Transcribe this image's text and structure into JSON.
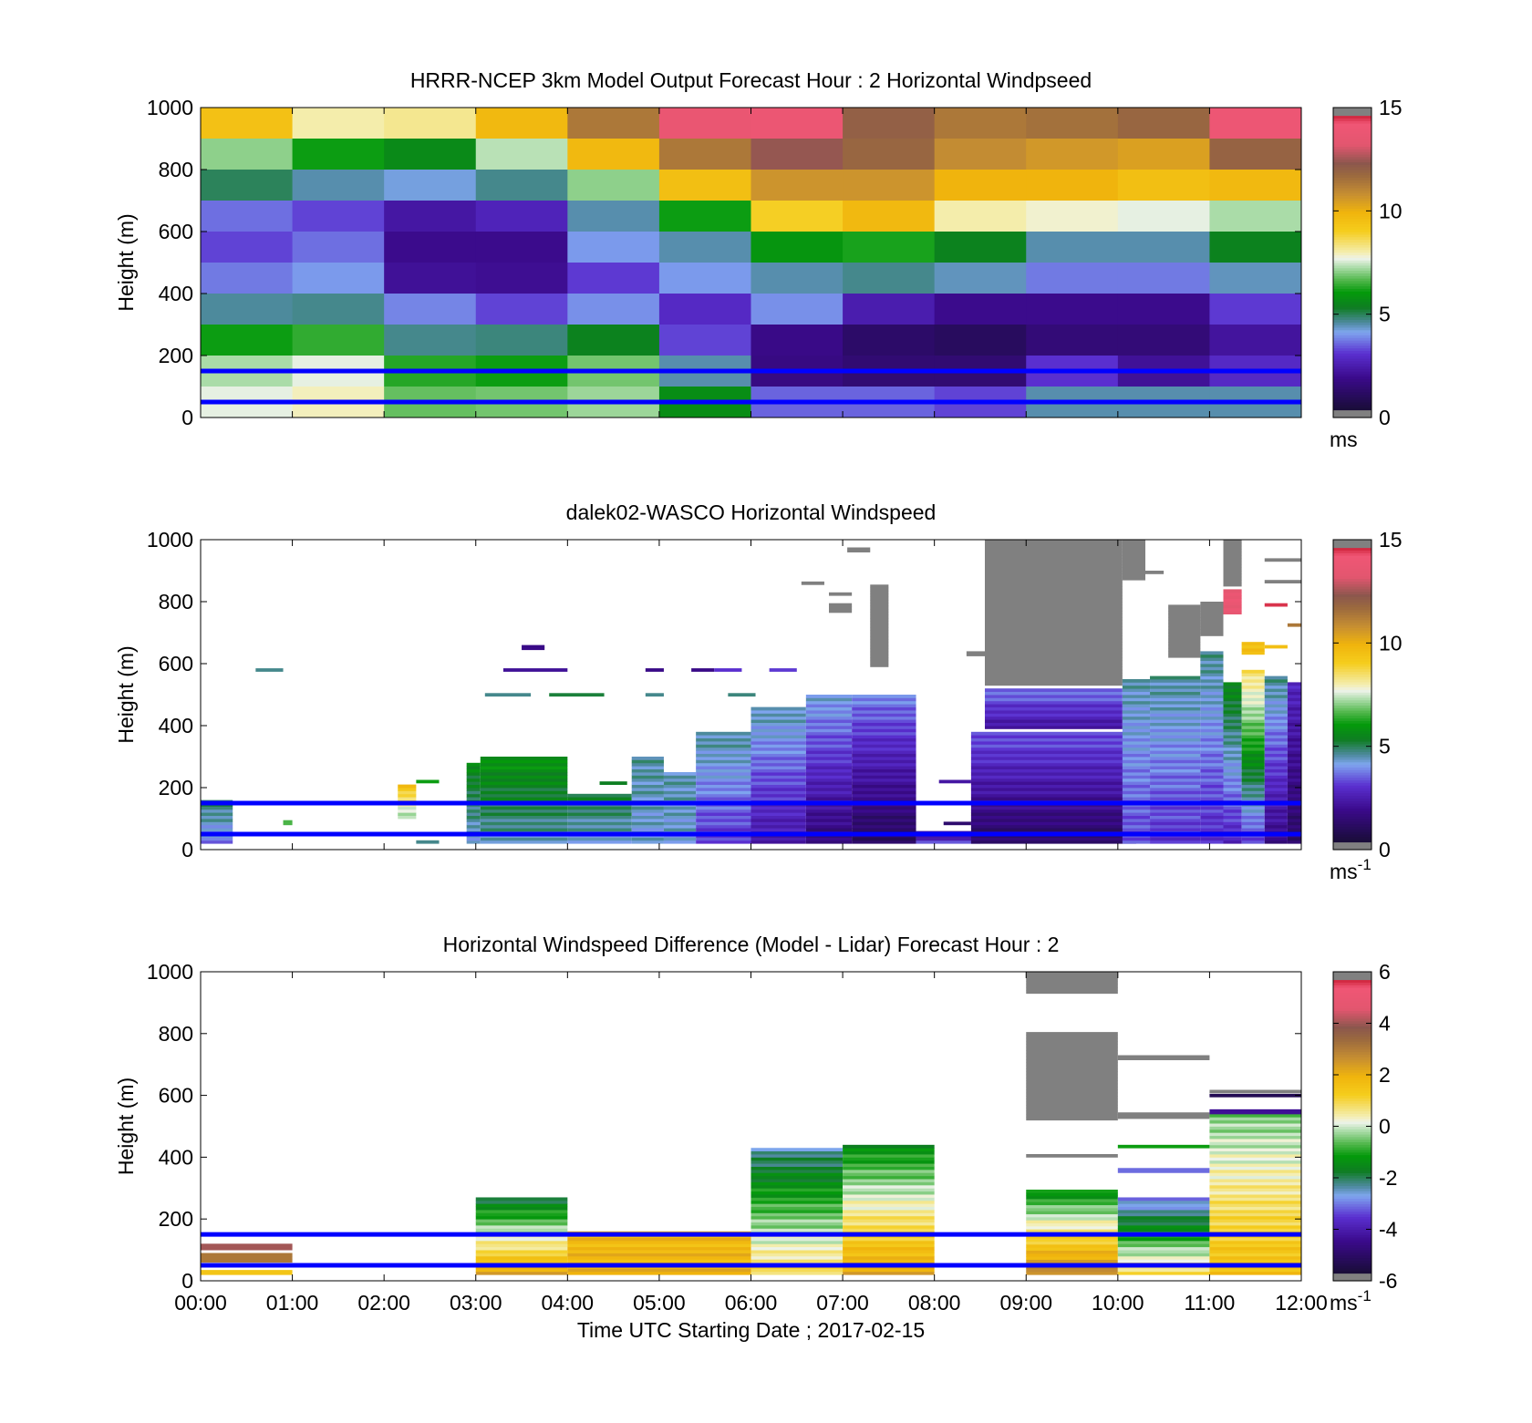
{
  "colors": {
    "overlay_line": "#0000ff",
    "missing": "#808080"
  },
  "colorscale_speed": [
    [
      0.0,
      "#808080"
    ],
    [
      0.02,
      "#1a0d3a"
    ],
    [
      0.12,
      "#3a0a8a"
    ],
    [
      0.2,
      "#5a2fd0"
    ],
    [
      0.27,
      "#7fa6ef"
    ],
    [
      0.3,
      "#4f8aa0"
    ],
    [
      0.35,
      "#0e7d22"
    ],
    [
      0.4,
      "#049a0b"
    ],
    [
      0.44,
      "#52b74c"
    ],
    [
      0.48,
      "#a8dba6"
    ],
    [
      0.51,
      "#eef3ea"
    ],
    [
      0.53,
      "#f4eeaf"
    ],
    [
      0.6,
      "#f5cd1c"
    ],
    [
      0.66,
      "#f0b40d"
    ],
    [
      0.72,
      "#c68e32"
    ],
    [
      0.78,
      "#9b6a3e"
    ],
    [
      0.82,
      "#8c574d"
    ],
    [
      0.88,
      "#e3566f"
    ],
    [
      0.95,
      "#f05675"
    ],
    [
      0.98,
      "#c8192e"
    ],
    [
      1.0,
      "#808080"
    ]
  ],
  "charts": [
    {
      "id": "model",
      "title": "HRRR-NCEP 3km Model Output   Forecast Hour : 2 Horizontal Windpseed",
      "ylabel": "Height (m)",
      "xlabel": "",
      "x_ticks": [],
      "y_ticks": [
        "0",
        "200",
        "400",
        "600",
        "800",
        "1000"
      ],
      "ylim": [
        0,
        1000
      ],
      "xlim_hours": [
        0,
        12
      ],
      "colorbar": {
        "ticks": [
          "0",
          "5",
          "10",
          "15"
        ],
        "unit": "ms",
        "unit_sup": "",
        "min": 0,
        "max": 15
      },
      "lines_m": [
        50,
        150
      ],
      "grid": false
    },
    {
      "id": "lidar",
      "title": "dalek02-WASCO  Horizontal Windspeed",
      "ylabel": "Height (m)",
      "xlabel": "",
      "x_ticks": [],
      "y_ticks": [
        "0",
        "200",
        "400",
        "600",
        "800",
        "1000"
      ],
      "ylim": [
        0,
        1000
      ],
      "xlim_hours": [
        0,
        12
      ],
      "colorbar": {
        "ticks": [
          "0",
          "5",
          "10",
          "15"
        ],
        "unit": "ms",
        "unit_sup": "-1",
        "min": 0,
        "max": 15
      },
      "lines_m": [
        50,
        150
      ],
      "grid": false
    },
    {
      "id": "diff",
      "title": "Horizontal Windspeed Difference (Model - Lidar) Forecast Hour : 2",
      "ylabel": "Height (m)",
      "xlabel": "Time UTC  Starting Date ; 2017-02-15",
      "x_ticks": [
        "00:00",
        "01:00",
        "02:00",
        "03:00",
        "04:00",
        "05:00",
        "06:00",
        "07:00",
        "08:00",
        "09:00",
        "10:00",
        "11:00",
        "12:00"
      ],
      "y_ticks": [
        "0",
        "200",
        "400",
        "600",
        "800",
        "1000"
      ],
      "ylim": [
        0,
        1000
      ],
      "xlim_hours": [
        0,
        12
      ],
      "colorbar": {
        "ticks": [
          "-6",
          "-4",
          "-2",
          "0",
          "2",
          "4",
          "6"
        ],
        "unit": "ms",
        "unit_sup": "-1",
        "min": -6,
        "max": 6
      },
      "lines_m": [
        50,
        150
      ],
      "grid": false
    }
  ],
  "chart_data": [
    {
      "type": "heatmap",
      "title": "HRRR-NCEP 3km Model Output   Forecast Hour : 2 Horizontal Windpseed",
      "ylabel": "Height (m)",
      "x_hours": [
        0,
        1,
        2,
        3,
        4,
        5,
        6,
        7,
        8,
        9,
        10,
        11
      ],
      "z_units": "ms",
      "zlim": [
        0,
        15
      ],
      "cells": [
        {
          "y0": 900,
          "y1": 1000,
          "values": [
            9.5,
            8.0,
            8.2,
            9.8,
            11.5,
            14.0,
            14.2,
            12.2,
            11.5,
            11.7,
            12.0,
            14.3
          ]
        },
        {
          "y0": 800,
          "y1": 900,
          "values": [
            7.0,
            6.0,
            5.5,
            7.3,
            9.8,
            11.5,
            12.6,
            12.0,
            11.0,
            10.7,
            10.5,
            12.1
          ]
        },
        {
          "y0": 700,
          "y1": 800,
          "values": [
            4.8,
            4.3,
            4.0,
            4.5,
            7.0,
            9.6,
            10.8,
            10.8,
            10.0,
            10.0,
            9.6,
            9.8
          ]
        },
        {
          "y0": 600,
          "y1": 700,
          "values": [
            3.4,
            3.0,
            2.0,
            2.4,
            4.3,
            6.0,
            9.0,
            9.8,
            8.0,
            7.8,
            7.6,
            7.2
          ]
        },
        {
          "y0": 500,
          "y1": 600,
          "values": [
            3.0,
            3.4,
            1.6,
            1.6,
            3.8,
            4.3,
            5.8,
            6.1,
            5.3,
            4.3,
            4.3,
            5.3
          ]
        },
        {
          "y0": 400,
          "y1": 500,
          "values": [
            3.5,
            3.8,
            1.8,
            1.7,
            2.9,
            3.8,
            4.3,
            4.5,
            4.2,
            3.5,
            3.5,
            4.2
          ]
        },
        {
          "y0": 300,
          "y1": 400,
          "values": [
            4.4,
            4.5,
            3.6,
            3.0,
            3.7,
            2.6,
            3.7,
            2.2,
            1.6,
            1.6,
            1.6,
            2.9
          ]
        },
        {
          "y0": 200,
          "y1": 300,
          "values": [
            6.0,
            6.3,
            4.5,
            4.6,
            5.3,
            3.0,
            1.5,
            0.9,
            0.7,
            1.2,
            1.2,
            1.9
          ]
        },
        {
          "y0": 100,
          "y1": 200,
          "values": [
            7.2,
            7.6,
            6.2,
            6.0,
            6.8,
            4.3,
            1.4,
            1.1,
            1.1,
            2.8,
            1.8,
            2.6
          ]
        },
        {
          "y0": 0,
          "y1": 100,
          "values": [
            7.6,
            7.9,
            6.7,
            6.8,
            7.1,
            5.6,
            3.3,
            3.3,
            3.0,
            4.3,
            4.3,
            4.3
          ]
        }
      ]
    },
    {
      "type": "heatmap",
      "title": "dalek02-WASCO  Horizontal Windspeed",
      "ylabel": "Height (m)",
      "z_units": "ms-1",
      "zlim": [
        0,
        15
      ],
      "segments": [
        {
          "t0": 0.0,
          "t1": 0.35,
          "y0": 20,
          "y1": 160,
          "v0": 3.5,
          "v1": 4.8
        },
        {
          "t0": 0.6,
          "t1": 0.9,
          "y0": 575,
          "y1": 585,
          "v0": 4.5,
          "v1": 4.5
        },
        {
          "t0": 0.9,
          "t1": 1.0,
          "y0": 80,
          "y1": 95,
          "v0": 6.5,
          "v1": 6.5
        },
        {
          "t0": 2.15,
          "t1": 2.35,
          "y0": 100,
          "y1": 210,
          "v0": 7.0,
          "v1": 9.5
        },
        {
          "t0": 2.35,
          "t1": 2.6,
          "y0": 215,
          "y1": 225,
          "v0": 6.0,
          "v1": 6.0
        },
        {
          "t0": 2.35,
          "t1": 2.6,
          "y0": 20,
          "y1": 30,
          "v0": 4.5,
          "v1": 4.5
        },
        {
          "t0": 2.9,
          "t1": 3.05,
          "y0": 20,
          "y1": 280,
          "v0": 4.0,
          "v1": 5.5
        },
        {
          "t0": 3.05,
          "t1": 4.0,
          "y0": 20,
          "y1": 300,
          "v0": 4.2,
          "v1": 5.8
        },
        {
          "t0": 3.1,
          "t1": 3.6,
          "y0": 495,
          "y1": 505,
          "v0": 4.5,
          "v1": 4.5
        },
        {
          "t0": 3.3,
          "t1": 4.0,
          "y0": 575,
          "y1": 585,
          "v0": 1.8,
          "v1": 1.8
        },
        {
          "t0": 3.5,
          "t1": 3.75,
          "y0": 645,
          "y1": 660,
          "v0": 1.5,
          "v1": 1.5
        },
        {
          "t0": 3.8,
          "t1": 4.4,
          "y0": 495,
          "y1": 505,
          "v0": 5.0,
          "v1": 3.2
        },
        {
          "t0": 4.0,
          "t1": 4.7,
          "y0": 20,
          "y1": 180,
          "v0": 4.0,
          "v1": 5.0
        },
        {
          "t0": 4.35,
          "t1": 4.65,
          "y0": 210,
          "y1": 220,
          "v0": 5.2,
          "v1": 5.2
        },
        {
          "t0": 4.7,
          "t1": 5.05,
          "y0": 20,
          "y1": 300,
          "v0": 4.0,
          "v1": 4.4
        },
        {
          "t0": 4.85,
          "t1": 5.05,
          "y0": 575,
          "y1": 585,
          "v0": 1.5,
          "v1": 1.5
        },
        {
          "t0": 4.85,
          "t1": 5.05,
          "y0": 495,
          "y1": 505,
          "v0": 4.5,
          "v1": 4.5
        },
        {
          "t0": 5.05,
          "t1": 5.4,
          "y0": 20,
          "y1": 250,
          "v0": 4.0,
          "v1": 4.3
        },
        {
          "t0": 5.35,
          "t1": 5.6,
          "y0": 575,
          "y1": 585,
          "v0": 1.5,
          "v1": 1.5
        },
        {
          "t0": 5.4,
          "t1": 6.0,
          "y0": 20,
          "y1": 380,
          "v0": 2.8,
          "v1": 4.4
        },
        {
          "t0": 5.6,
          "t1": 5.9,
          "y0": 575,
          "y1": 585,
          "v0": 2.8,
          "v1": 2.8
        },
        {
          "t0": 5.75,
          "t1": 6.05,
          "y0": 495,
          "y1": 505,
          "v0": 4.6,
          "v1": 4.6
        },
        {
          "t0": 6.0,
          "t1": 6.6,
          "y0": 20,
          "y1": 460,
          "v0": 2.0,
          "v1": 4.3
        },
        {
          "t0": 6.2,
          "t1": 6.5,
          "y0": 575,
          "y1": 585,
          "v0": 2.9,
          "v1": 2.9
        },
        {
          "t0": 6.6,
          "t1": 7.1,
          "y0": 20,
          "y1": 500,
          "v0": 1.2,
          "v1": 4.0
        },
        {
          "t0": 6.55,
          "t1": 6.8,
          "y0": 855,
          "y1": 865,
          "v0": -1,
          "v1": -1
        },
        {
          "t0": 6.85,
          "t1": 7.1,
          "y0": 820,
          "y1": 830,
          "v0": -1,
          "v1": -1
        },
        {
          "t0": 6.85,
          "t1": 7.1,
          "y0": 765,
          "y1": 795,
          "v0": -1,
          "v1": -1
        },
        {
          "t0": 7.1,
          "t1": 7.8,
          "y0": 20,
          "y1": 500,
          "v0": 0.6,
          "v1": 3.6
        },
        {
          "t0": 7.05,
          "t1": 7.3,
          "y0": 960,
          "y1": 975,
          "v0": -1,
          "v1": -1
        },
        {
          "t0": 7.3,
          "t1": 7.5,
          "y0": 590,
          "y1": 855,
          "v0": -1,
          "v1": -1
        },
        {
          "t0": 7.8,
          "t1": 8.5,
          "y0": 20,
          "y1": 60,
          "v0": 3.0,
          "v1": 1.5
        },
        {
          "t0": 8.05,
          "t1": 8.4,
          "y0": 215,
          "y1": 225,
          "v0": 2.0,
          "v1": 2.0
        },
        {
          "t0": 8.1,
          "t1": 8.4,
          "y0": 80,
          "y1": 90,
          "v0": 1.0,
          "v1": 1.0
        },
        {
          "t0": 8.4,
          "t1": 10.2,
          "y0": 20,
          "y1": 380,
          "v0": 0.8,
          "v1": 3.2
        },
        {
          "t0": 8.35,
          "t1": 8.55,
          "y0": 625,
          "y1": 640,
          "v0": -1,
          "v1": -1
        },
        {
          "t0": 8.55,
          "t1": 10.05,
          "y0": 530,
          "y1": 1000,
          "v0": -1,
          "v1": -1
        },
        {
          "t0": 8.55,
          "t1": 10.05,
          "y0": 390,
          "y1": 520,
          "v0": 2.0,
          "v1": 3.5
        },
        {
          "t0": 10.05,
          "t1": 10.35,
          "y0": 20,
          "y1": 550,
          "v0": 3.0,
          "v1": 4.3
        },
        {
          "t0": 10.05,
          "t1": 10.3,
          "y0": 870,
          "y1": 1000,
          "v0": -1,
          "v1": -1
        },
        {
          "t0": 10.2,
          "t1": 10.5,
          "y0": 890,
          "y1": 900,
          "v0": -1,
          "v1": -1
        },
        {
          "t0": 10.35,
          "t1": 10.9,
          "y0": 20,
          "y1": 560,
          "v0": 2.8,
          "v1": 4.4
        },
        {
          "t0": 10.55,
          "t1": 10.9,
          "y0": 620,
          "y1": 790,
          "v0": -1,
          "v1": -1
        },
        {
          "t0": 10.9,
          "t1": 11.15,
          "y0": 20,
          "y1": 640,
          "v0": 2.6,
          "v1": 4.5
        },
        {
          "t0": 10.9,
          "t1": 11.15,
          "y0": 690,
          "y1": 800,
          "v0": -1,
          "v1": -1
        },
        {
          "t0": 11.15,
          "t1": 11.35,
          "y0": 20,
          "y1": 540,
          "v0": 2.5,
          "v1": 5.5
        },
        {
          "t0": 11.15,
          "t1": 11.35,
          "y0": 850,
          "y1": 1000,
          "v0": -1,
          "v1": -1
        },
        {
          "t0": 11.15,
          "t1": 11.35,
          "y0": 760,
          "y1": 840,
          "v0": 14.0,
          "v1": 14.0
        },
        {
          "t0": 11.35,
          "t1": 11.6,
          "y0": 20,
          "y1": 580,
          "v0": 2.8,
          "v1": 8.5
        },
        {
          "t0": 11.35,
          "t1": 11.6,
          "y0": 630,
          "y1": 670,
          "v0": 9.5,
          "v1": 9.5
        },
        {
          "t0": 11.6,
          "t1": 11.85,
          "y0": 20,
          "y1": 560,
          "v0": 1.5,
          "v1": 4.5
        },
        {
          "t0": 11.6,
          "t1": 11.85,
          "y0": 650,
          "y1": 660,
          "v0": 9.6,
          "v1": 9.6
        },
        {
          "t0": 11.6,
          "t1": 11.85,
          "y0": 785,
          "y1": 795,
          "v0": 14.8,
          "v1": 14.8
        },
        {
          "t0": 11.85,
          "t1": 12.0,
          "y0": 20,
          "y1": 540,
          "v0": 0.8,
          "v1": 2.5
        },
        {
          "t0": 11.6,
          "t1": 12.0,
          "y0": 930,
          "y1": 940,
          "v0": -1,
          "v1": -1
        },
        {
          "t0": 11.6,
          "t1": 12.0,
          "y0": 860,
          "y1": 870,
          "v0": -1,
          "v1": -1
        },
        {
          "t0": 11.85,
          "t1": 12.0,
          "y0": 720,
          "y1": 730,
          "v0": 11.5,
          "v1": 11.5
        }
      ]
    },
    {
      "type": "heatmap",
      "title": "Horizontal Windspeed Difference (Model - Lidar) Forecast Hour : 2",
      "xlabel": "Time UTC  Starting Date ; 2017-02-15",
      "ylabel": "Height (m)",
      "z_units": "ms-1",
      "zlim": [
        -6,
        6
      ],
      "segments": [
        {
          "t0": 0.0,
          "t1": 1.0,
          "y0": 100,
          "y1": 120,
          "v0": 4.2,
          "v1": 4.2
        },
        {
          "t0": 0.0,
          "t1": 1.0,
          "y0": 60,
          "y1": 90,
          "v0": 3.2,
          "v1": 3.2
        },
        {
          "t0": 0.0,
          "t1": 1.0,
          "y0": 20,
          "y1": 35,
          "v0": 1.5,
          "v1": 1.5
        },
        {
          "t0": 3.0,
          "t1": 4.0,
          "y0": 20,
          "y1": 270,
          "v0": 2.2,
          "v1": -2.0
        },
        {
          "t0": 4.0,
          "t1": 6.0,
          "y0": 20,
          "y1": 160,
          "v0": 2.0,
          "v1": 1.8
        },
        {
          "t0": 6.0,
          "t1": 7.0,
          "y0": 20,
          "y1": 430,
          "v0": 1.0,
          "v1": -2.5
        },
        {
          "t0": 7.0,
          "t1": 8.0,
          "y0": 20,
          "y1": 440,
          "v0": 2.4,
          "v1": -1.5
        },
        {
          "t0": 9.0,
          "t1": 10.0,
          "y0": 520,
          "y1": 805,
          "v0": -7,
          "v1": -7
        },
        {
          "t0": 9.0,
          "t1": 10.0,
          "y0": 930,
          "y1": 1000,
          "v0": -7,
          "v1": -7
        },
        {
          "t0": 9.0,
          "t1": 10.0,
          "y0": 400,
          "y1": 410,
          "v0": -7,
          "v1": -7
        },
        {
          "t0": 9.0,
          "t1": 10.0,
          "y0": 20,
          "y1": 295,
          "v0": 3.0,
          "v1": -1.5
        },
        {
          "t0": 10.0,
          "t1": 11.0,
          "y0": 20,
          "y1": 270,
          "v0": 1.0,
          "v1": -3.2
        },
        {
          "t0": 10.0,
          "t1": 11.0,
          "y0": 350,
          "y1": 365,
          "v0": -3.3,
          "v1": -3.3
        },
        {
          "t0": 10.0,
          "t1": 11.0,
          "y0": 430,
          "y1": 440,
          "v0": -1.2,
          "v1": -1.2
        },
        {
          "t0": 10.0,
          "t1": 11.0,
          "y0": 525,
          "y1": 545,
          "v0": -7,
          "v1": -7
        },
        {
          "t0": 10.0,
          "t1": 11.0,
          "y0": 715,
          "y1": 730,
          "v0": -7,
          "v1": -7
        },
        {
          "t0": 11.0,
          "t1": 12.0,
          "y0": 20,
          "y1": 540,
          "v0": 1.8,
          "v1": -0.5
        },
        {
          "t0": 11.0,
          "t1": 12.0,
          "y0": 540,
          "y1": 555,
          "v0": -4.6,
          "v1": -4.6
        },
        {
          "t0": 11.0,
          "t1": 12.0,
          "y0": 595,
          "y1": 605,
          "v0": -5.6,
          "v1": -5.6
        },
        {
          "t0": 11.0,
          "t1": 12.0,
          "y0": 608,
          "y1": 618,
          "v0": -7,
          "v1": -7
        }
      ]
    }
  ]
}
